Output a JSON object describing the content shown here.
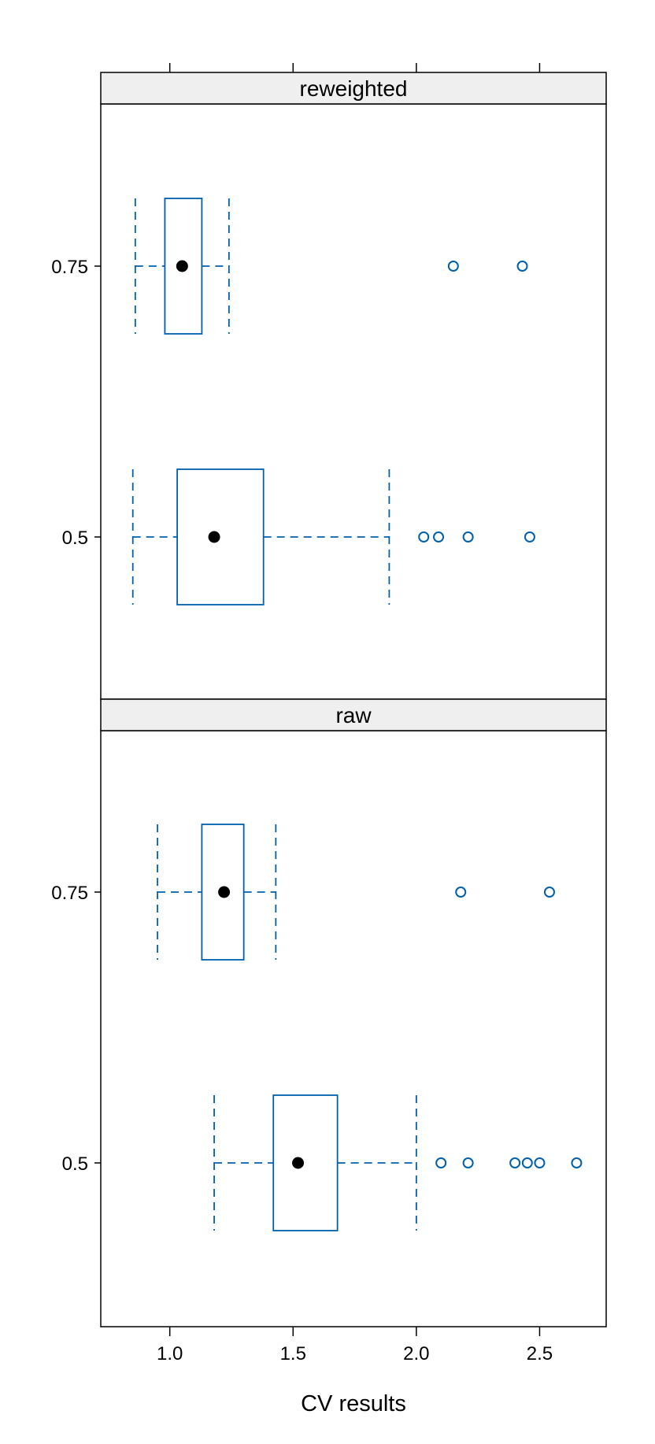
{
  "chart_data": {
    "type": "boxplot",
    "xlabel": "CV results",
    "ylabel": "",
    "xlim": [
      0.72,
      2.77
    ],
    "x_ticks": [
      "1.0",
      "1.5",
      "2.0",
      "2.5"
    ],
    "x_tick_values": [
      1.0,
      1.5,
      2.0,
      2.5
    ],
    "categories": [
      "0.5",
      "0.75"
    ],
    "colors": {
      "box": "#0060ad",
      "median": "#000000",
      "strip_bg": "#efefef",
      "frame": "#000000"
    },
    "panels": [
      {
        "strip": "reweighted",
        "boxes": [
          {
            "label": "0.75",
            "min": 0.86,
            "q1": 0.98,
            "median": 1.05,
            "q3": 1.13,
            "max": 1.24,
            "outliers": [
              2.15,
              2.43
            ]
          },
          {
            "label": "0.5",
            "min": 0.85,
            "q1": 1.03,
            "median": 1.18,
            "q3": 1.38,
            "max": 1.89,
            "outliers": [
              2.03,
              2.09,
              2.21,
              2.46
            ]
          }
        ]
      },
      {
        "strip": "raw",
        "boxes": [
          {
            "label": "0.75",
            "min": 0.95,
            "q1": 1.13,
            "median": 1.22,
            "q3": 1.3,
            "max": 1.43,
            "outliers": [
              2.18,
              2.54
            ]
          },
          {
            "label": "0.5",
            "min": 1.18,
            "q1": 1.42,
            "median": 1.52,
            "q3": 1.68,
            "max": 2.0,
            "outliers": [
              2.1,
              2.21,
              2.4,
              2.45,
              2.5,
              2.65
            ]
          }
        ]
      }
    ]
  }
}
